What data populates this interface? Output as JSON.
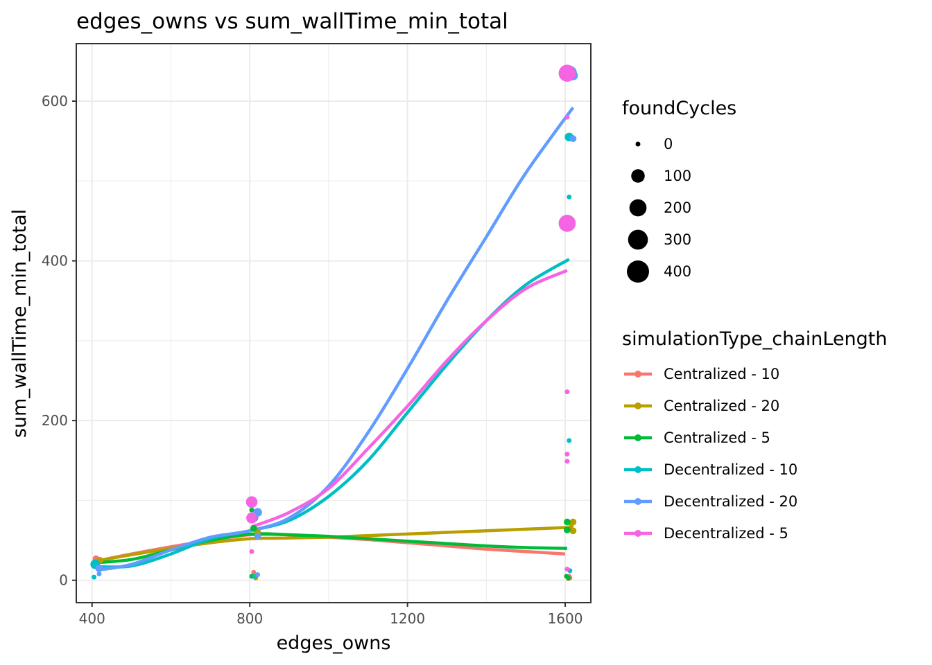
{
  "chart_data": {
    "type": "scatter",
    "title": "edges_owns  vs  sum_wallTime_min_total",
    "xlabel": "edges_owns",
    "ylabel": "sum_wallTime_min_total",
    "xlim": [
      360,
      1665
    ],
    "ylim": [
      -28,
      672
    ],
    "x_ticks": [
      400,
      800,
      1200,
      1600
    ],
    "y_ticks": [
      0,
      200,
      400,
      600
    ],
    "grid": true,
    "legend_position": "right",
    "size_legend": {
      "title": "foundCycles",
      "entries": [
        {
          "label": "0",
          "value": 0
        },
        {
          "label": "100",
          "value": 100
        },
        {
          "label": "200",
          "value": 200
        },
        {
          "label": "300",
          "value": 300
        },
        {
          "label": "400",
          "value": 400
        }
      ]
    },
    "color_legend_title": "simulationType_chainLength",
    "series": [
      {
        "name": "Centralized - 10",
        "color": "#F8766D",
        "points": [
          [
            410,
            27,
            5
          ],
          [
            415,
            25,
            2
          ],
          [
            810,
            10,
            0
          ],
          [
            808,
            5,
            0
          ],
          [
            1608,
            2,
            0
          ],
          [
            1610,
            5,
            0
          ],
          [
            1612,
            3,
            0
          ]
        ],
        "smooth": [
          [
            410,
            24
          ],
          [
            500,
            33
          ],
          [
            600,
            42
          ],
          [
            700,
            50
          ],
          [
            800,
            57
          ],
          [
            900,
            57
          ],
          [
            1000,
            54
          ],
          [
            1100,
            51
          ],
          [
            1200,
            47
          ],
          [
            1300,
            43
          ],
          [
            1400,
            39
          ],
          [
            1500,
            36
          ],
          [
            1600,
            33
          ]
        ]
      },
      {
        "name": "Centralized - 20",
        "color": "#B79F00",
        "points": [
          [
            420,
            25,
            5
          ],
          [
            820,
            60,
            5
          ],
          [
            815,
            3,
            0
          ],
          [
            1620,
            73,
            5
          ],
          [
            1620,
            62,
            5
          ],
          [
            1615,
            68,
            0
          ]
        ],
        "smooth": [
          [
            420,
            25
          ],
          [
            500,
            32
          ],
          [
            600,
            40
          ],
          [
            700,
            47
          ],
          [
            800,
            52
          ],
          [
            900,
            53
          ],
          [
            1000,
            54
          ],
          [
            1100,
            56
          ],
          [
            1200,
            58
          ],
          [
            1300,
            60
          ],
          [
            1400,
            62
          ],
          [
            1500,
            64
          ],
          [
            1600,
            66
          ],
          [
            1620,
            66
          ]
        ]
      },
      {
        "name": "Centralized - 5",
        "color": "#00BA38",
        "points": [
          [
            805,
            88,
            0
          ],
          [
            810,
            65,
            5
          ],
          [
            805,
            5,
            0
          ],
          [
            1605,
            73,
            5
          ],
          [
            1605,
            63,
            5
          ],
          [
            1603,
            5,
            0
          ],
          [
            1608,
            3,
            0
          ]
        ],
        "smooth": [
          [
            405,
            22
          ],
          [
            500,
            26
          ],
          [
            600,
            38
          ],
          [
            700,
            50
          ],
          [
            805,
            58
          ],
          [
            900,
            57
          ],
          [
            1000,
            55
          ],
          [
            1100,
            52
          ],
          [
            1200,
            49
          ],
          [
            1300,
            46
          ],
          [
            1400,
            43
          ],
          [
            1500,
            41
          ],
          [
            1605,
            40
          ]
        ]
      },
      {
        "name": "Decentralized - 10",
        "color": "#00BFC4",
        "points": [
          [
            408,
            20,
            30
          ],
          [
            405,
            4,
            0
          ],
          [
            812,
            78,
            10
          ],
          [
            812,
            5,
            0
          ],
          [
            1610,
            635,
            150
          ],
          [
            1610,
            555,
            20
          ],
          [
            1610,
            480,
            0
          ],
          [
            1610,
            175,
            0
          ],
          [
            1612,
            12,
            0
          ]
        ],
        "smooth": [
          [
            408,
            17
          ],
          [
            500,
            18
          ],
          [
            600,
            33
          ],
          [
            700,
            52
          ],
          [
            800,
            62
          ],
          [
            900,
            75
          ],
          [
            1000,
            105
          ],
          [
            1100,
            150
          ],
          [
            1200,
            210
          ],
          [
            1300,
            270
          ],
          [
            1400,
            325
          ],
          [
            1500,
            370
          ],
          [
            1610,
            402
          ]
        ]
      },
      {
        "name": "Decentralized - 20",
        "color": "#619CFF",
        "points": [
          [
            418,
            15,
            10
          ],
          [
            418,
            8,
            0
          ],
          [
            820,
            85,
            20
          ],
          [
            820,
            55,
            5
          ],
          [
            820,
            7,
            0
          ],
          [
            1620,
            632,
            30
          ],
          [
            1620,
            553,
            5
          ]
        ],
        "smooth": [
          [
            418,
            13
          ],
          [
            500,
            20
          ],
          [
            600,
            38
          ],
          [
            700,
            54
          ],
          [
            800,
            62
          ],
          [
            900,
            78
          ],
          [
            1000,
            118
          ],
          [
            1100,
            185
          ],
          [
            1200,
            265
          ],
          [
            1300,
            350
          ],
          [
            1400,
            430
          ],
          [
            1500,
            510
          ],
          [
            1620,
            592
          ]
        ]
      },
      {
        "name": "Decentralized - 5",
        "color": "#F564E3",
        "points": [
          [
            805,
            98,
            60
          ],
          [
            805,
            78,
            50
          ],
          [
            805,
            36,
            0
          ],
          [
            1605,
            635,
            200
          ],
          [
            1605,
            447,
            200
          ],
          [
            1605,
            580,
            0
          ],
          [
            1605,
            236,
            0
          ],
          [
            1605,
            158,
            0
          ],
          [
            1605,
            149,
            0
          ],
          [
            1605,
            14,
            0
          ]
        ],
        "smooth": [
          [
            805,
            67
          ],
          [
            900,
            85
          ],
          [
            1000,
            115
          ],
          [
            1100,
            165
          ],
          [
            1200,
            218
          ],
          [
            1300,
            275
          ],
          [
            1400,
            325
          ],
          [
            1500,
            365
          ],
          [
            1605,
            388
          ]
        ]
      }
    ]
  }
}
